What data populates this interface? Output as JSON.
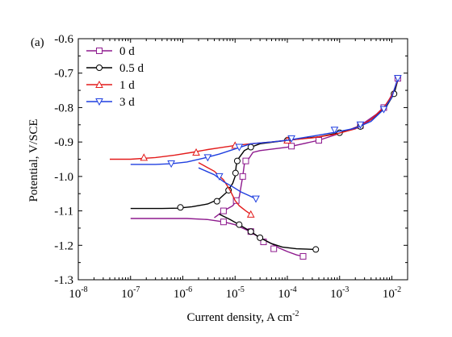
{
  "panel_label": "(a)",
  "chart_data": {
    "type": "line",
    "title": "",
    "xlabel": "Current density, A cm",
    "xlabel_sup": "-2",
    "ylabel": "Potential, V/SCE",
    "x_scale": "log",
    "xlim": [
      1e-08,
      0.02
    ],
    "ylim": [
      -1.3,
      -0.6
    ],
    "x_ticks": [
      {
        "base": "10",
        "exp": "-8"
      },
      {
        "base": "10",
        "exp": "-7"
      },
      {
        "base": "10",
        "exp": "-6"
      },
      {
        "base": "10",
        "exp": "-5"
      },
      {
        "base": "10",
        "exp": "-4"
      },
      {
        "base": "10",
        "exp": "-3"
      },
      {
        "base": "10",
        "exp": "-2"
      }
    ],
    "y_ticks": [
      "-0.6",
      "-0.7",
      "-0.8",
      "-0.9",
      "-1.0",
      "-1.1",
      "-1.2",
      "-1.3"
    ],
    "legend_position": "top-left",
    "grid": false,
    "series": [
      {
        "name": "0 d",
        "color": "#8e1a8e",
        "marker": "square",
        "points": [
          [
            1e-07,
            -1.122
          ],
          [
            4e-07,
            -1.122
          ],
          [
            1.2e-06,
            -1.122
          ],
          [
            3e-06,
            -1.125
          ],
          [
            6e-06,
            -1.132
          ],
          [
            1e-05,
            -1.14
          ],
          [
            1.8e-05,
            -1.158
          ],
          [
            3e-05,
            -1.178
          ],
          [
            5e-05,
            -1.195
          ],
          [
            7e-05,
            -1.208
          ],
          [
            0.0001,
            -1.218
          ],
          [
            0.00015,
            -1.228
          ],
          [
            0.0002,
            -1.232
          ]
        ],
        "anodic": [
          [
            4e-06,
            -1.12
          ],
          [
            6e-06,
            -1.1
          ],
          [
            9e-06,
            -1.085
          ],
          [
            1.2e-05,
            -1.06
          ],
          [
            1.4e-05,
            -1.0
          ],
          [
            1.5e-05,
            -0.965
          ],
          [
            1.6e-05,
            -0.955
          ],
          [
            1.8e-05,
            -0.95
          ],
          [
            2.2e-05,
            -0.93
          ],
          [
            3e-05,
            -0.925
          ],
          [
            0.0001,
            -0.915
          ],
          [
            0.0004,
            -0.895
          ],
          [
            0.001,
            -0.875
          ],
          [
            0.0025,
            -0.852
          ],
          [
            0.005,
            -0.82
          ],
          [
            0.008,
            -0.79
          ],
          [
            0.011,
            -0.75
          ],
          [
            0.013,
            -0.715
          ]
        ],
        "marker_points": [
          [
            6e-06,
            -1.132
          ],
          [
            2e-05,
            -1.16
          ],
          [
            3.5e-05,
            -1.19
          ],
          [
            5.5e-05,
            -1.21
          ],
          [
            0.0002,
            -1.232
          ],
          [
            6e-06,
            -1.1
          ],
          [
            1.05e-05,
            -1.07
          ],
          [
            1.4e-05,
            -1.0
          ],
          [
            1.6e-05,
            -0.955
          ],
          [
            0.00012,
            -0.912
          ],
          [
            0.0004,
            -0.895
          ],
          [
            0.0025,
            -0.852
          ],
          [
            0.007,
            -0.8
          ],
          [
            0.013,
            -0.715
          ]
        ]
      },
      {
        "name": "0.5 d",
        "color": "#000000",
        "marker": "circle",
        "points": [
          [
            1e-07,
            -1.093
          ],
          [
            4e-07,
            -1.093
          ],
          [
            8e-07,
            -1.092
          ],
          [
            1.5e-06,
            -1.088
          ],
          [
            3e-06,
            -1.08
          ],
          [
            5e-06,
            -1.065
          ],
          [
            7e-06,
            -1.045
          ],
          [
            9e-06,
            -1.02
          ],
          [
            1e-05,
            -1.0
          ],
          [
            1.05e-05,
            -0.97
          ],
          [
            1.1e-05,
            -0.955
          ],
          [
            1.2e-05,
            -0.945
          ],
          [
            1.5e-05,
            -0.925
          ],
          [
            2e-05,
            -0.915
          ],
          [
            3e-05,
            -0.905
          ],
          [
            0.0001,
            -0.895
          ],
          [
            0.0004,
            -0.885
          ],
          [
            0.001,
            -0.873
          ],
          [
            0.0025,
            -0.855
          ],
          [
            0.005,
            -0.825
          ],
          [
            0.008,
            -0.795
          ],
          [
            0.011,
            -0.76
          ],
          [
            0.013,
            -0.72
          ]
        ],
        "cathodic": [
          [
            5e-06,
            -1.11
          ],
          [
            8e-06,
            -1.125
          ],
          [
            1.2e-05,
            -1.14
          ],
          [
            2e-05,
            -1.16
          ],
          [
            3e-05,
            -1.178
          ],
          [
            5e-05,
            -1.195
          ],
          [
            8e-05,
            -1.205
          ],
          [
            0.00015,
            -1.21
          ],
          [
            0.00035,
            -1.212
          ]
        ],
        "marker_points": [
          [
            9e-07,
            -1.09
          ],
          [
            4.5e-06,
            -1.072
          ],
          [
            7.5e-06,
            -1.04
          ],
          [
            1.02e-05,
            -0.99
          ],
          [
            1.1e-05,
            -0.955
          ],
          [
            2e-05,
            -0.915
          ],
          [
            1.2e-05,
            -1.14
          ],
          [
            2e-05,
            -1.16
          ],
          [
            3e-05,
            -1.178
          ],
          [
            0.00035,
            -1.212
          ],
          [
            0.0001,
            -0.895
          ],
          [
            0.001,
            -0.873
          ],
          [
            0.0025,
            -0.855
          ],
          [
            0.011,
            -0.76
          ]
        ]
      },
      {
        "name": "1 d",
        "color": "#e31b1b",
        "marker": "triangle-up",
        "points": [
          [
            4e-08,
            -0.95
          ],
          [
            1e-07,
            -0.95
          ],
          [
            3e-07,
            -0.945
          ],
          [
            7e-07,
            -0.938
          ],
          [
            1.5e-06,
            -0.93
          ],
          [
            3e-06,
            -0.922
          ],
          [
            6e-06,
            -0.915
          ],
          [
            1e-05,
            -0.91
          ],
          [
            2e-05,
            -0.905
          ],
          [
            5e-05,
            -0.9
          ],
          [
            0.0001,
            -0.895
          ],
          [
            0.0003,
            -0.888
          ],
          [
            0.0008,
            -0.878
          ],
          [
            0.002,
            -0.862
          ],
          [
            0.004,
            -0.835
          ],
          [
            0.007,
            -0.8
          ],
          [
            0.01,
            -0.765
          ],
          [
            0.013,
            -0.72
          ]
        ],
        "cathodic": [
          [
            2e-06,
            -0.96
          ],
          [
            4e-06,
            -0.985
          ],
          [
            6e-06,
            -1.01
          ],
          [
            8e-06,
            -1.04
          ],
          [
            1e-05,
            -1.07
          ],
          [
            1.2e-05,
            -1.085
          ],
          [
            1.6e-05,
            -1.1
          ],
          [
            2e-05,
            -1.11
          ]
        ],
        "marker_points": [
          [
            1.8e-07,
            -0.945
          ],
          [
            1.8e-06,
            -0.93
          ],
          [
            1e-05,
            -0.91
          ],
          [
            0.0001,
            -0.895
          ],
          [
            2e-05,
            -1.11
          ]
        ]
      },
      {
        "name": "3 d",
        "color": "#1f3fe0",
        "marker": "triangle-down",
        "points": [
          [
            1e-07,
            -0.965
          ],
          [
            3e-07,
            -0.965
          ],
          [
            6e-07,
            -0.963
          ],
          [
            1.2e-06,
            -0.958
          ],
          [
            2.5e-06,
            -0.947
          ],
          [
            5e-06,
            -0.935
          ],
          [
            1e-05,
            -0.92
          ],
          [
            2e-05,
            -0.905
          ],
          [
            5e-05,
            -0.9
          ],
          [
            0.0001,
            -0.895
          ],
          [
            0.0003,
            -0.883
          ],
          [
            0.0008,
            -0.872
          ],
          [
            0.002,
            -0.86
          ],
          [
            0.004,
            -0.84
          ],
          [
            0.007,
            -0.805
          ],
          [
            0.01,
            -0.77
          ],
          [
            0.013,
            -0.715
          ]
        ],
        "cathodic": [
          [
            2e-06,
            -0.975
          ],
          [
            4e-06,
            -0.995
          ],
          [
            6e-06,
            -1.015
          ],
          [
            9e-06,
            -1.03
          ],
          [
            1.3e-05,
            -1.045
          ],
          [
            1.8e-05,
            -1.055
          ],
          [
            2.5e-05,
            -1.065
          ]
        ],
        "marker_points": [
          [
            6e-07,
            -0.963
          ],
          [
            3e-06,
            -0.945
          ],
          [
            1.2e-05,
            -0.915
          ],
          [
            0.00012,
            -0.89
          ],
          [
            0.0008,
            -0.865
          ],
          [
            0.0025,
            -0.85
          ],
          [
            0.007,
            -0.805
          ],
          [
            0.013,
            -0.715
          ],
          [
            2.5e-05,
            -1.065
          ],
          [
            5e-06,
            -1.0
          ]
        ]
      }
    ]
  }
}
